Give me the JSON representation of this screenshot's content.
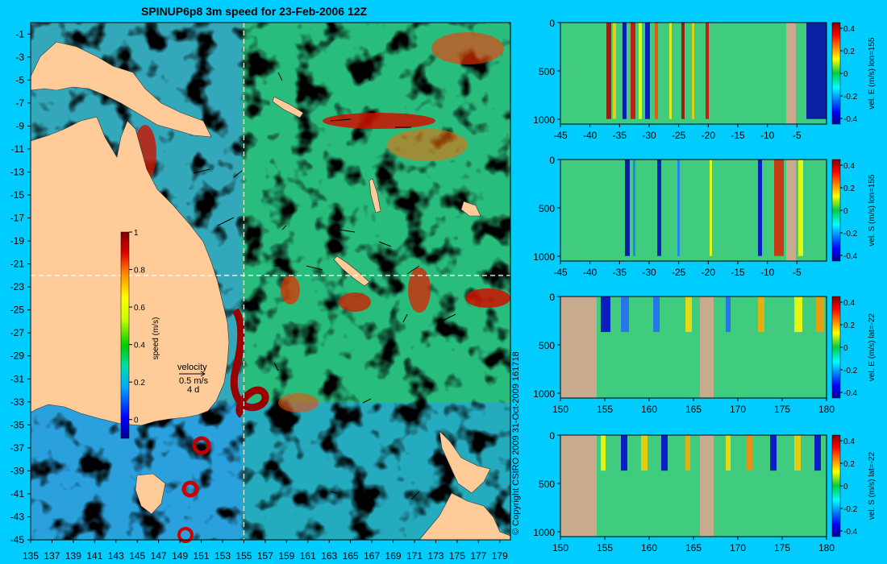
{
  "title": "SPINUP6p8 3m speed for 23-Feb-2006 12Z",
  "copyright": "© Copyright CSIRO 2009   31-Oct-2009 161718",
  "colors": {
    "background": "#00ccff",
    "land": "#ffcc99",
    "section_land": "#c8aa8c",
    "crosshair": "#ffffff"
  },
  "map": {
    "lon_ticks": [
      "135",
      "137",
      "139",
      "141",
      "143",
      "145",
      "147",
      "149",
      "151",
      "153",
      "155",
      "157",
      "159",
      "161",
      "163",
      "165",
      "167",
      "169",
      "171",
      "173",
      "175",
      "177",
      "179"
    ],
    "lat_ticks": [
      "-1",
      "-3",
      "-5",
      "-7",
      "-9",
      "-11",
      "-13",
      "-15",
      "-17",
      "-19",
      "-21",
      "-23",
      "-25",
      "-27",
      "-29",
      "-31",
      "-33",
      "-35",
      "-37",
      "-39",
      "-41",
      "-43",
      "-45"
    ],
    "lon_range": [
      135,
      180
    ],
    "lat_range": [
      -45,
      0
    ],
    "crosshair": {
      "lon": 155,
      "lat": -22
    },
    "colorbar": {
      "label": "speed (m/s)",
      "ticks": [
        "1",
        "0.8",
        "0.6",
        "0.4",
        "0.2",
        "0"
      ],
      "range": [
        -0.1,
        1.0
      ]
    },
    "velocity_key": {
      "title": "velocity",
      "magnitude": "0.5 m/s",
      "duration": "4 d"
    }
  },
  "sections": [
    {
      "id": "lon155-east",
      "label": "vel. E (m/s) lon=155",
      "x_ticks": [
        "-45",
        "-40",
        "-35",
        "-30",
        "-25",
        "-20",
        "-15",
        "-10",
        "-5"
      ],
      "x_range": [
        -45,
        0
      ],
      "y_ticks": [
        "0",
        "500",
        "1000"
      ],
      "depth_range": [
        0,
        1050
      ],
      "cbar_ticks": [
        "0.4",
        "0.2",
        "0",
        "-0.2",
        "-0.4"
      ],
      "cbar_range": [
        -0.45,
        0.45
      ]
    },
    {
      "id": "lon155-south",
      "label": "vel. S (m/s) lon=155",
      "x_ticks": [
        "-45",
        "-40",
        "-35",
        "-30",
        "-25",
        "-20",
        "-15",
        "-10",
        "-5"
      ],
      "x_range": [
        -45,
        0
      ],
      "y_ticks": [
        "0",
        "500",
        "1000"
      ],
      "depth_range": [
        0,
        1050
      ],
      "cbar_ticks": [
        "0.4",
        "0.2",
        "0",
        "-0.2",
        "-0.4"
      ],
      "cbar_range": [
        -0.45,
        0.45
      ]
    },
    {
      "id": "lat22-east",
      "label": "vel. E (m/s) lat=-22",
      "x_ticks": [
        "150",
        "155",
        "160",
        "165",
        "170",
        "175",
        "180"
      ],
      "x_range": [
        150,
        180
      ],
      "y_ticks": [
        "0",
        "500",
        "1000"
      ],
      "depth_range": [
        0,
        1050
      ],
      "cbar_ticks": [
        "0.4",
        "0.2",
        "0",
        "-0.2",
        "-0.4"
      ],
      "cbar_range": [
        -0.45,
        0.45
      ]
    },
    {
      "id": "lat22-south",
      "label": "vel. S (m/s) lat=-22",
      "x_ticks": [
        "150",
        "155",
        "160",
        "165",
        "170",
        "175",
        "180"
      ],
      "x_range": [
        150,
        180
      ],
      "y_ticks": [
        "0",
        "500",
        "1000"
      ],
      "depth_range": [
        0,
        1050
      ],
      "cbar_ticks": [
        "0.4",
        "0.2",
        "0",
        "-0.2",
        "-0.4"
      ],
      "cbar_range": [
        -0.45,
        0.45
      ]
    }
  ]
}
